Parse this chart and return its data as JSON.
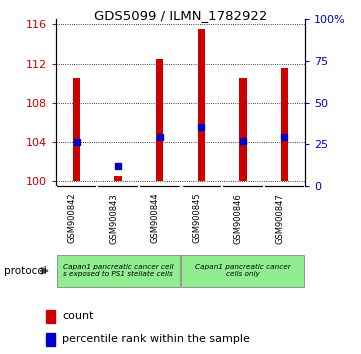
{
  "title": "GDS5099 / ILMN_1782922",
  "samples": [
    "GSM900842",
    "GSM900843",
    "GSM900844",
    "GSM900845",
    "GSM900846",
    "GSM900847"
  ],
  "bar_base": 100,
  "bar_tops": [
    110.5,
    100.5,
    112.5,
    115.5,
    110.5,
    111.5
  ],
  "percentile_values": [
    104.0,
    101.5,
    104.5,
    105.5,
    104.1,
    104.5
  ],
  "ylim_left": [
    99.5,
    116.5
  ],
  "yticks_left": [
    100,
    104,
    108,
    112,
    116
  ],
  "yticks_right": [
    0,
    25,
    50,
    75,
    100
  ],
  "bar_color": "#cc0000",
  "percentile_color": "#0000cc",
  "protocol_group1_label": "Capan1 pancreatic cancer cell\ns exposed to PS1 stellate cells",
  "protocol_group2_label": "Capan1 pancreatic cancer\ncells only",
  "protocol_color": "#90ee90",
  "sample_bg_color": "#d3d3d3",
  "legend_count_label": "count",
  "legend_percentile_label": "percentile rank within the sample",
  "protocol_label": "protocol",
  "background_color": "#ffffff",
  "tick_label_color_left": "#cc0000",
  "tick_label_color_right": "#0000cc",
  "bar_width": 0.18
}
